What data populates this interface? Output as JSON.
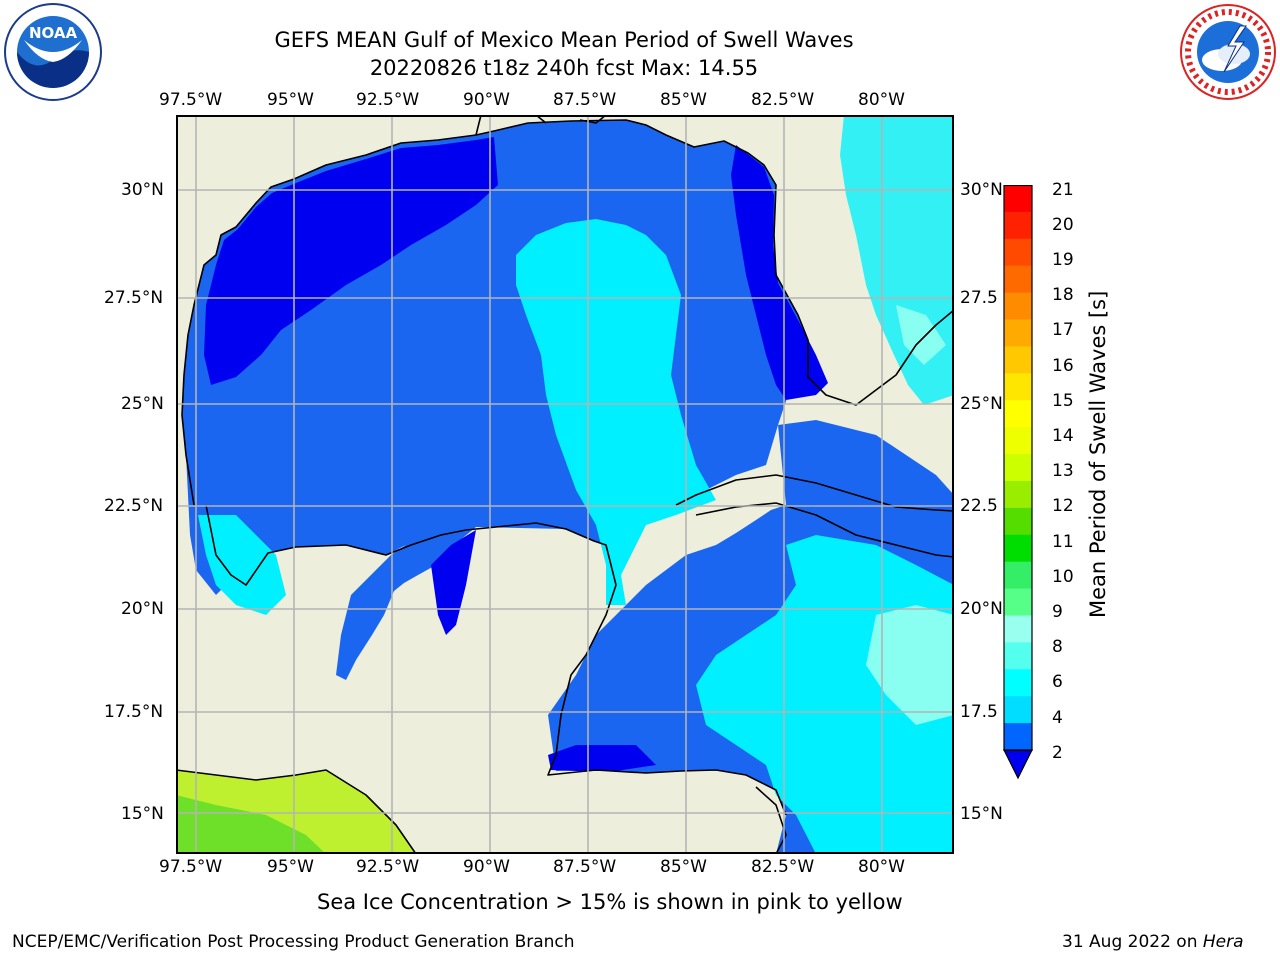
{
  "header": {
    "title_line1": "GEFS MEAN Gulf of Mexico Mean Period of Swell Waves",
    "title_line2": "20220826 t18z 240h fcst   Max: 14.55"
  },
  "logos": {
    "left_text": "NOAA",
    "left_ring_text": "NATIONAL OCEANIC AND ATMOSPHERIC ADMINISTRATION · U.S. DEPARTMENT OF COMMERCE",
    "right_ring_text": "NATIONAL WEATHER SERVICE"
  },
  "map": {
    "lon_ticks": [
      "97.5°W",
      "95°W",
      "92.5°W",
      "90°W",
      "87.5°W",
      "85°W",
      "82.5°W",
      "80°W"
    ],
    "lat_ticks_left": [
      "30°N",
      "27.5°N",
      "25°N",
      "22.5°N",
      "20°N",
      "17.5°N",
      "15°N"
    ],
    "lat_ticks_right": [
      "30°N",
      "27.5",
      "25°N",
      "22.5",
      "20°N",
      "17.5",
      "15°N"
    ],
    "extent": {
      "lon_min": -98.0,
      "lon_max": -79.0,
      "lat_min": 14.0,
      "lat_max": 31.8
    },
    "colors": {
      "land": "#eeeedc",
      "coast": "#000000",
      "grid": "#b4b4b4"
    }
  },
  "colorbar": {
    "label": "Mean Period of Swell Waves [s]",
    "ticks": [
      "21",
      "20",
      "19",
      "18",
      "17",
      "16",
      "15",
      "14",
      "13",
      "12",
      "11",
      "10",
      "9",
      "8",
      "6",
      "4",
      "2"
    ],
    "colors_top_to_bottom": [
      "#ff0000",
      "#ff2200",
      "#ff4a00",
      "#ff6a00",
      "#ff8c00",
      "#ffaa00",
      "#ffc800",
      "#ffe600",
      "#ffff00",
      "#eeff00",
      "#ccff00",
      "#99ee00",
      "#55dd00",
      "#00dd00",
      "#33ee66",
      "#55ff88",
      "#99ffee",
      "#55ffee",
      "#00ffff",
      "#00ddff",
      "#0066ff",
      "#0000ee"
    ]
  },
  "notes": {
    "ice": "Sea Ice Concentration > 15% is shown in pink to yellow"
  },
  "footer": {
    "left": "NCEP/EMC/Verification Post Processing Product Generation Branch",
    "right_date": "31 Aug 2022 on ",
    "right_machine": "Hera"
  }
}
